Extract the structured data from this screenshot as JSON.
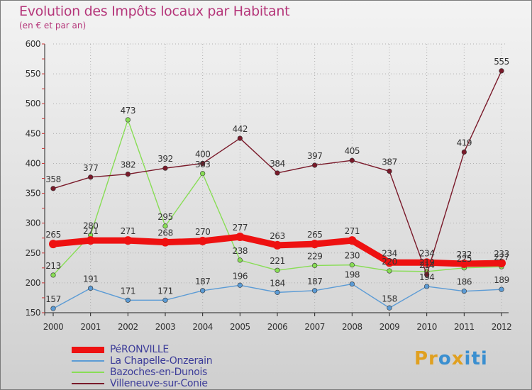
{
  "chart_data": {
    "type": "line",
    "title": "Evolution des Impôts locaux par Habitant",
    "subtitle": "(en € et par an)",
    "xlabel": "",
    "ylabel": "",
    "ylim": [
      150,
      600
    ],
    "y_ticks": [
      150,
      200,
      250,
      300,
      350,
      400,
      450,
      500,
      550,
      600
    ],
    "categories": [
      "2000",
      "2001",
      "2002",
      "2003",
      "2004",
      "2005",
      "2006",
      "2007",
      "2008",
      "2009",
      "2010",
      "2011",
      "2012"
    ],
    "series": [
      {
        "name": "PéRONVILLE",
        "color": "#ee1111",
        "values": [
          265,
          271,
          271,
          268,
          270,
          277,
          263,
          265,
          271,
          234,
          234,
          232,
          233
        ]
      },
      {
        "name": "La Chapelle-Onzerain",
        "color": "#5b9bd5",
        "values": [
          157,
          191,
          171,
          171,
          187,
          196,
          184,
          187,
          198,
          158,
          194,
          186,
          189
        ]
      },
      {
        "name": "Bazoches-en-Dunois",
        "color": "#88dd55",
        "values": [
          213,
          280,
          473,
          295,
          383,
          238,
          221,
          229,
          230,
          220,
          219,
          225,
          227
        ]
      },
      {
        "name": "Villeneuve-sur-Conie",
        "color": "#7a1a2a",
        "values": [
          358,
          377,
          382,
          392,
          400,
          442,
          384,
          397,
          405,
          387,
          214,
          419,
          555
        ]
      }
    ]
  },
  "logo": {
    "letters": [
      "Pr",
      "o",
      "x",
      "iti"
    ]
  }
}
